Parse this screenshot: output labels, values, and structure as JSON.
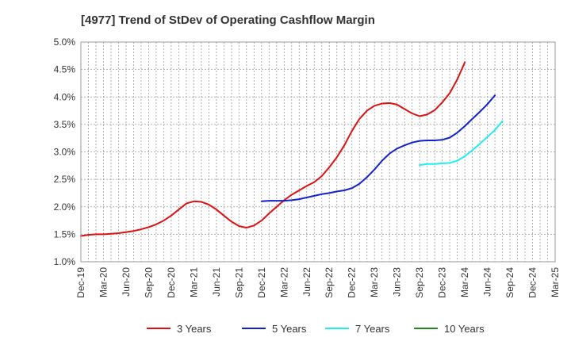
{
  "chart_data": {
    "type": "line",
    "title": "[4977]  Trend of StDev of Operating Cashflow Margin",
    "xlabel": "",
    "ylabel": "",
    "x_ticks": [
      "Dec-19",
      "Mar-20",
      "Jun-20",
      "Sep-20",
      "Dec-20",
      "Mar-21",
      "Jun-21",
      "Sep-21",
      "Dec-21",
      "Mar-22",
      "Jun-22",
      "Sep-22",
      "Dec-22",
      "Mar-23",
      "Jun-23",
      "Sep-23",
      "Dec-23",
      "Mar-24",
      "Jun-24",
      "Sep-24",
      "Dec-24",
      "Mar-25"
    ],
    "y_ticks": [
      "1.0%",
      "1.5%",
      "2.0%",
      "2.5%",
      "3.0%",
      "3.5%",
      "4.0%",
      "4.5%",
      "5.0%"
    ],
    "ylim": [
      1.0,
      5.0
    ],
    "grid": true,
    "legend_position": "bottom",
    "series": [
      {
        "name": "3 Years",
        "color": "#dd1111",
        "start_index": 0,
        "values": [
          1.47,
          1.49,
          1.5,
          1.5,
          1.51,
          1.52,
          1.54,
          1.56,
          1.59,
          1.63,
          1.68,
          1.75,
          1.84,
          1.95,
          2.06,
          2.1,
          2.09,
          2.04,
          1.95,
          1.84,
          1.73,
          1.65,
          1.62,
          1.66,
          1.75,
          1.88,
          2.0,
          2.12,
          2.22,
          2.3,
          2.38,
          2.45,
          2.56,
          2.72,
          2.9,
          3.12,
          3.38,
          3.6,
          3.75,
          3.84,
          3.88,
          3.89,
          3.86,
          3.78,
          3.7,
          3.65,
          3.68,
          3.76,
          3.9,
          4.07,
          4.32,
          4.63
        ]
      },
      {
        "name": "5 Years",
        "color": "#1122cc",
        "start_index": 24,
        "values": [
          2.1,
          2.11,
          2.11,
          2.11,
          2.12,
          2.14,
          2.17,
          2.2,
          2.23,
          2.25,
          2.28,
          2.3,
          2.34,
          2.42,
          2.54,
          2.68,
          2.84,
          2.97,
          3.06,
          3.12,
          3.17,
          3.2,
          3.21,
          3.21,
          3.22,
          3.26,
          3.35,
          3.47,
          3.6,
          3.73,
          3.87,
          4.03
        ]
      },
      {
        "name": "7 Years",
        "color": "#22eeee",
        "start_index": 45,
        "values": [
          2.76,
          2.78,
          2.78,
          2.79,
          2.8,
          2.84,
          2.92,
          3.03,
          3.15,
          3.27,
          3.4,
          3.56
        ]
      },
      {
        "name": "10 Years",
        "color": "#228822",
        "start_index": 0,
        "values": []
      }
    ]
  }
}
